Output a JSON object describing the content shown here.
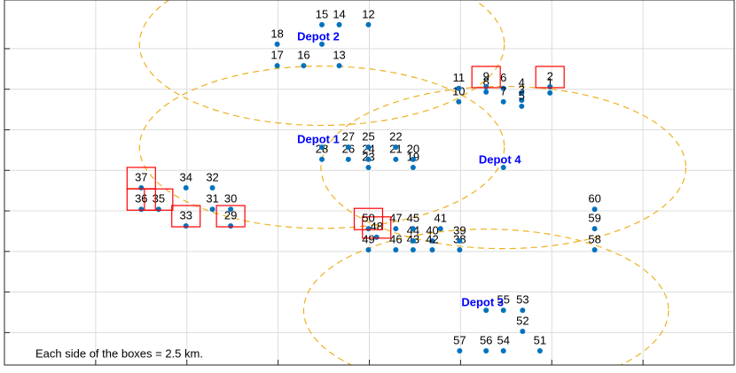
{
  "chart_data": {
    "type": "scatter",
    "xlim": [
      0,
      8
    ],
    "ylim": [
      0.2,
      9.2
    ],
    "xticks": [
      1,
      2,
      3,
      4,
      5,
      6,
      7
    ],
    "yticks": [
      1,
      2,
      3,
      4,
      5,
      6,
      7,
      8
    ],
    "grid": true,
    "nodes": {
      "color": "#0072bd",
      "labels": [
        "1",
        "2",
        "3",
        "4",
        "5",
        "6",
        "7",
        "8",
        "9",
        "10",
        "11",
        "12",
        "13",
        "14",
        "15",
        "16",
        "17",
        "18",
        "19",
        "20",
        "21",
        "22",
        "23",
        "24",
        "25",
        "26",
        "27",
        "28",
        "29",
        "30",
        "31",
        "32",
        "33",
        "34",
        "35",
        "36",
        "37",
        "38",
        "39",
        "40",
        "41",
        "42",
        "43",
        "44",
        "45",
        "46",
        "47",
        "48",
        "49",
        "50",
        "51",
        "52",
        "53",
        "54",
        "55",
        "56",
        "57",
        "58",
        "59",
        "60"
      ],
      "x": [
        5.98,
        5.98,
        5.67,
        5.67,
        5.67,
        5.47,
        5.47,
        5.28,
        5.28,
        4.98,
        4.98,
        3.99,
        3.67,
        3.67,
        3.48,
        3.28,
        2.99,
        2.99,
        4.48,
        4.48,
        4.29,
        4.29,
        3.99,
        3.99,
        3.99,
        3.77,
        3.77,
        3.48,
        2.48,
        2.48,
        2.28,
        2.28,
        1.99,
        1.99,
        1.69,
        1.5,
        1.5,
        4.99,
        4.99,
        4.69,
        4.78,
        4.69,
        4.48,
        4.48,
        4.48,
        4.29,
        4.29,
        4.08,
        3.99,
        3.99,
        5.87,
        5.68,
        5.68,
        5.47,
        5.47,
        5.28,
        4.99,
        6.47,
        6.47,
        6.47
      ],
      "y": [
        6.91,
        7.06,
        6.73,
        6.91,
        6.58,
        7.02,
        6.69,
        6.93,
        7.06,
        6.69,
        7.02,
        8.59,
        7.58,
        8.59,
        8.59,
        7.58,
        7.58,
        8.11,
        5.07,
        5.27,
        5.27,
        5.57,
        5.07,
        5.27,
        5.57,
        5.27,
        5.57,
        5.27,
        3.63,
        4.04,
        4.04,
        4.57,
        3.63,
        4.57,
        4.04,
        4.04,
        4.57,
        3.04,
        3.26,
        3.26,
        3.56,
        3.04,
        3.04,
        3.26,
        3.56,
        3.04,
        3.56,
        3.35,
        3.04,
        3.56,
        0.55,
        1.03,
        1.55,
        0.55,
        1.55,
        0.55,
        0.55,
        3.04,
        3.56,
        4.04
      ],
      "boxed": [
        false,
        true,
        false,
        false,
        false,
        false,
        false,
        false,
        true,
        false,
        false,
        false,
        false,
        false,
        false,
        false,
        false,
        false,
        false,
        false,
        false,
        false,
        false,
        false,
        false,
        false,
        false,
        false,
        true,
        false,
        false,
        false,
        true,
        false,
        true,
        true,
        true,
        false,
        false,
        false,
        false,
        false,
        false,
        false,
        false,
        false,
        false,
        true,
        false,
        true,
        false,
        false,
        false,
        false,
        false,
        false,
        false,
        false,
        false,
        false
      ],
      "box_color": "#ff0000"
    },
    "depots": {
      "color": "#0000ff",
      "circle_color": "#edb120",
      "labels": [
        "Depot 1",
        "Depot 2",
        "Depot 3",
        "Depot 4"
      ],
      "x": [
        3.48,
        3.48,
        5.28,
        5.47
      ],
      "y": [
        5.57,
        8.11,
        1.55,
        5.07
      ],
      "radius": 2
    },
    "annotation": "Each side of the boxes = 2.5 km."
  }
}
